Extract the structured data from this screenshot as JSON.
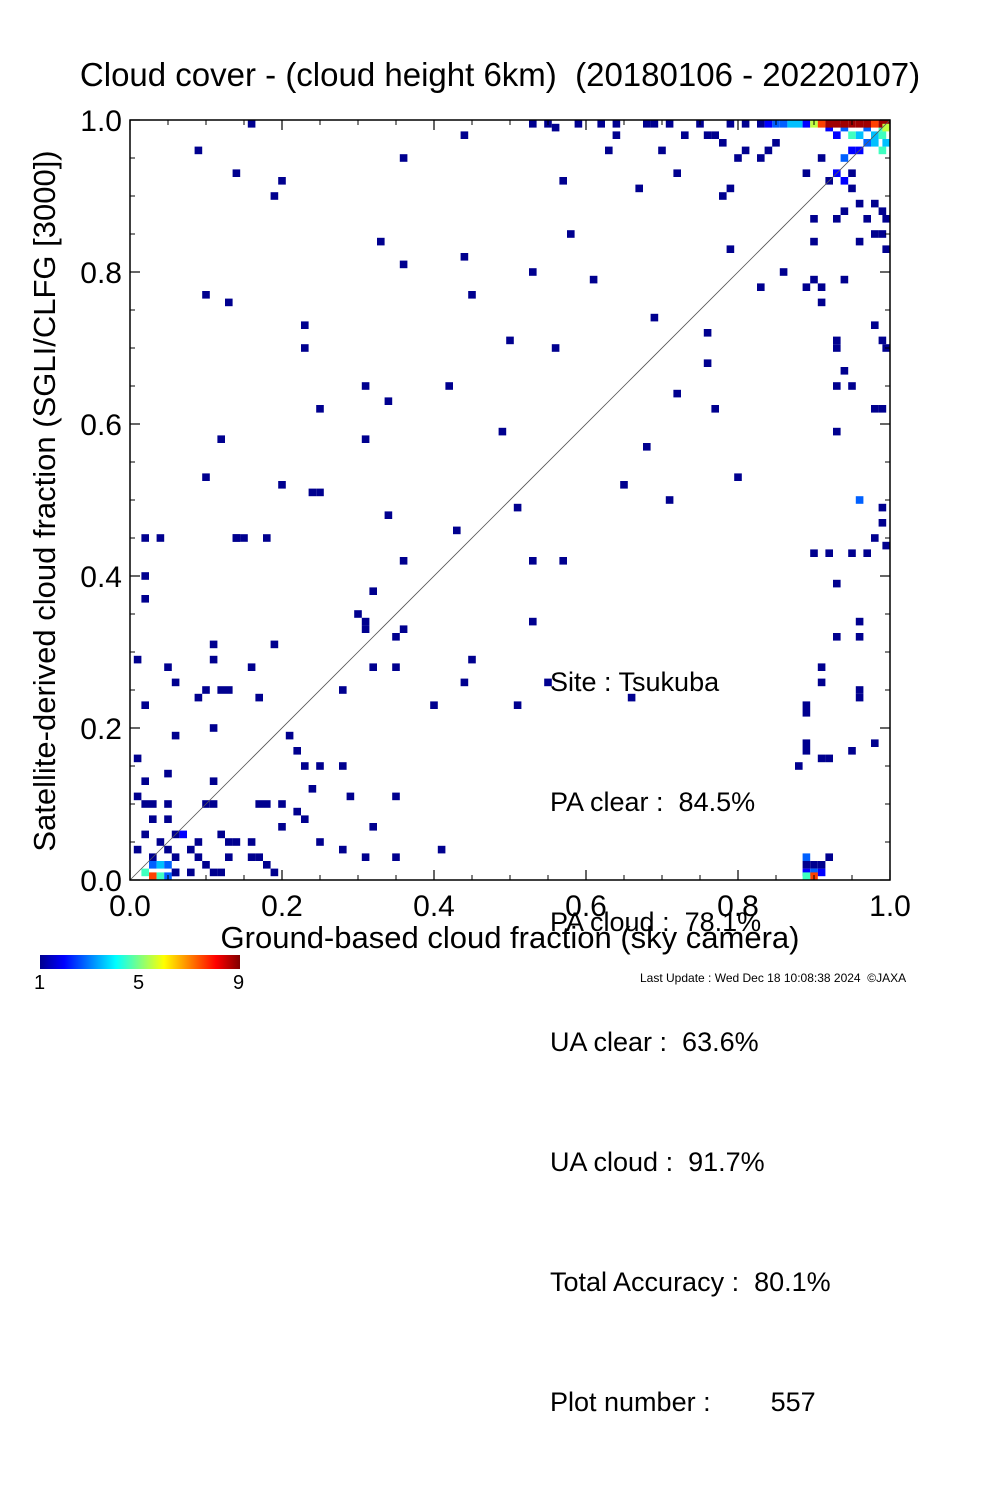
{
  "chart_data": {
    "type": "heatmap",
    "title": "Cloud cover - (cloud height 6km)  (20180106 - 20220107)",
    "xlabel": "Ground-based cloud fraction (sky camera)",
    "ylabel": "Satellite-derived cloud fraction (SGLI/CLFG [3000])",
    "xlim": [
      0.0,
      1.0
    ],
    "ylim": [
      0.0,
      1.0
    ],
    "x_ticks": [
      "0.0",
      "0.2",
      "0.4",
      "0.6",
      "0.8",
      "1.0"
    ],
    "y_ticks": [
      "0.0",
      "0.2",
      "0.4",
      "0.6",
      "0.8",
      "1.0"
    ],
    "grid": false,
    "diagonal_line": true,
    "colorbar": {
      "min": 1,
      "max": 9,
      "tick_labels": [
        "1",
        "5",
        "9"
      ]
    },
    "cells": [
      [
        0.02,
        0.45,
        1
      ],
      [
        0.04,
        0.45,
        1
      ],
      [
        0.02,
        0.4,
        1
      ],
      [
        0.02,
        0.37,
        1
      ],
      [
        0.01,
        0.29,
        1
      ],
      [
        0.05,
        0.28,
        1
      ],
      [
        0.06,
        0.26,
        1
      ],
      [
        0.02,
        0.23,
        1
      ],
      [
        0.06,
        0.19,
        1
      ],
      [
        0.01,
        0.16,
        1
      ],
      [
        0.02,
        0.13,
        1
      ],
      [
        0.05,
        0.14,
        1
      ],
      [
        0.01,
        0.11,
        1
      ],
      [
        0.02,
        0.1,
        1
      ],
      [
        0.03,
        0.1,
        1
      ],
      [
        0.05,
        0.1,
        1
      ],
      [
        0.03,
        0.08,
        1
      ],
      [
        0.05,
        0.08,
        1
      ],
      [
        0.02,
        0.06,
        1
      ],
      [
        0.04,
        0.05,
        1
      ],
      [
        0.06,
        0.06,
        1
      ],
      [
        0.01,
        0.04,
        1
      ],
      [
        0.03,
        0.03,
        1
      ],
      [
        0.05,
        0.04,
        1
      ],
      [
        0.06,
        0.03,
        1
      ],
      [
        0.08,
        0.04,
        1
      ],
      [
        0.03,
        0.02,
        3
      ],
      [
        0.04,
        0.02,
        4
      ],
      [
        0.05,
        0.02,
        3
      ],
      [
        0.06,
        0.01,
        2
      ],
      [
        0.02,
        0.01,
        5
      ],
      [
        0.03,
        0.0,
        8
      ],
      [
        0.04,
        0.0,
        5
      ],
      [
        0.05,
        0.0,
        3
      ],
      [
        0.07,
        0.06,
        2
      ],
      [
        0.09,
        0.03,
        1
      ],
      [
        0.1,
        0.02,
        1
      ],
      [
        0.11,
        0.01,
        1
      ],
      [
        0.12,
        0.01,
        1
      ],
      [
        0.08,
        0.01,
        1
      ],
      [
        0.06,
        0.01,
        1
      ],
      [
        0.09,
        0.05,
        1
      ],
      [
        0.1,
        0.1,
        1
      ],
      [
        0.11,
        0.1,
        1
      ],
      [
        0.09,
        0.24,
        1
      ],
      [
        0.1,
        0.25,
        1
      ],
      [
        0.11,
        0.13,
        1
      ],
      [
        0.11,
        0.2,
        1
      ],
      [
        0.11,
        0.29,
        1
      ],
      [
        0.11,
        0.31,
        1
      ],
      [
        0.12,
        0.25,
        1
      ],
      [
        0.13,
        0.25,
        1
      ],
      [
        0.12,
        0.06,
        1
      ],
      [
        0.13,
        0.05,
        1
      ],
      [
        0.14,
        0.05,
        1
      ],
      [
        0.13,
        0.03,
        1
      ],
      [
        0.16,
        0.05,
        1
      ],
      [
        0.16,
        0.03,
        1
      ],
      [
        0.17,
        0.03,
        1
      ],
      [
        0.18,
        0.02,
        1
      ],
      [
        0.19,
        0.01,
        1
      ],
      [
        0.17,
        0.1,
        1
      ],
      [
        0.18,
        0.1,
        1
      ],
      [
        0.16,
        0.28,
        1
      ],
      [
        0.17,
        0.24,
        1
      ],
      [
        0.15,
        0.45,
        1
      ],
      [
        0.18,
        0.45,
        1
      ],
      [
        0.14,
        0.45,
        1
      ],
      [
        0.19,
        0.31,
        1
      ],
      [
        0.21,
        0.19,
        1
      ],
      [
        0.22,
        0.17,
        1
      ],
      [
        0.23,
        0.15,
        1
      ],
      [
        0.24,
        0.12,
        1
      ],
      [
        0.25,
        0.15,
        1
      ],
      [
        0.2,
        0.1,
        1
      ],
      [
        0.22,
        0.09,
        1
      ],
      [
        0.2,
        0.07,
        1
      ],
      [
        0.23,
        0.08,
        1
      ],
      [
        0.2,
        0.52,
        1
      ],
      [
        0.24,
        0.51,
        1
      ],
      [
        0.25,
        0.51,
        1
      ],
      [
        0.14,
        0.45,
        1
      ],
      [
        0.1,
        0.53,
        1
      ],
      [
        0.12,
        0.58,
        1
      ],
      [
        0.23,
        0.73,
        1
      ],
      [
        0.23,
        0.7,
        1
      ],
      [
        0.25,
        0.62,
        1
      ],
      [
        0.13,
        0.76,
        1
      ],
      [
        0.1,
        0.77,
        1
      ],
      [
        0.19,
        0.9,
        1
      ],
      [
        0.2,
        0.92,
        1
      ],
      [
        0.14,
        0.93,
        1
      ],
      [
        0.09,
        0.96,
        1
      ],
      [
        0.16,
        1.0,
        1
      ],
      [
        0.33,
        0.84,
        1
      ],
      [
        0.36,
        0.81,
        1
      ],
      [
        0.31,
        0.65,
        1
      ],
      [
        0.34,
        0.63,
        1
      ],
      [
        0.31,
        0.58,
        1
      ],
      [
        0.34,
        0.48,
        1
      ],
      [
        0.36,
        0.42,
        1
      ],
      [
        0.32,
        0.38,
        1
      ],
      [
        0.3,
        0.35,
        1
      ],
      [
        0.31,
        0.33,
        1
      ],
      [
        0.31,
        0.34,
        1
      ],
      [
        0.35,
        0.32,
        1
      ],
      [
        0.36,
        0.33,
        1
      ],
      [
        0.32,
        0.28,
        1
      ],
      [
        0.35,
        0.28,
        1
      ],
      [
        0.28,
        0.25,
        1
      ],
      [
        0.28,
        0.15,
        1
      ],
      [
        0.29,
        0.11,
        1
      ],
      [
        0.32,
        0.07,
        1
      ],
      [
        0.35,
        0.11,
        1
      ],
      [
        0.25,
        0.05,
        1
      ],
      [
        0.28,
        0.04,
        1
      ],
      [
        0.31,
        0.03,
        1
      ],
      [
        0.35,
        0.03,
        1
      ],
      [
        0.41,
        0.04,
        1
      ],
      [
        0.4,
        0.23,
        1
      ],
      [
        0.44,
        0.26,
        1
      ],
      [
        0.45,
        0.29,
        1
      ],
      [
        0.43,
        0.46,
        1
      ],
      [
        0.42,
        0.65,
        1
      ],
      [
        0.44,
        0.82,
        1
      ],
      [
        0.45,
        0.77,
        1
      ],
      [
        0.36,
        0.95,
        1
      ],
      [
        0.44,
        0.98,
        1
      ],
      [
        0.49,
        0.59,
        1
      ],
      [
        0.5,
        0.71,
        1
      ],
      [
        0.51,
        0.49,
        1
      ],
      [
        0.53,
        0.8,
        1
      ],
      [
        0.53,
        0.42,
        1
      ],
      [
        0.53,
        0.34,
        1
      ],
      [
        0.51,
        0.23,
        1
      ],
      [
        0.55,
        0.26,
        1
      ],
      [
        0.56,
        0.7,
        1
      ],
      [
        0.57,
        0.42,
        1
      ],
      [
        0.58,
        0.85,
        1
      ],
      [
        0.57,
        0.92,
        1
      ],
      [
        0.61,
        0.79,
        1
      ],
      [
        0.63,
        0.96,
        1
      ],
      [
        0.64,
        0.98,
        1
      ],
      [
        0.67,
        0.91,
        1
      ],
      [
        0.65,
        0.52,
        1
      ],
      [
        0.66,
        0.24,
        1
      ],
      [
        0.68,
        0.57,
        1
      ],
      [
        0.69,
        0.74,
        1
      ],
      [
        0.71,
        0.5,
        1
      ],
      [
        0.72,
        0.64,
        1
      ],
      [
        0.7,
        0.96,
        1
      ],
      [
        0.72,
        0.93,
        1
      ],
      [
        0.73,
        0.98,
        1
      ],
      [
        0.76,
        0.72,
        1
      ],
      [
        0.76,
        0.68,
        1
      ],
      [
        0.77,
        0.62,
        1
      ],
      [
        0.78,
        0.9,
        1
      ],
      [
        0.79,
        0.91,
        1
      ],
      [
        0.79,
        0.83,
        1
      ],
      [
        0.8,
        0.53,
        1
      ],
      [
        0.76,
        0.98,
        1
      ],
      [
        0.77,
        0.98,
        1
      ],
      [
        0.78,
        0.97,
        1
      ],
      [
        0.8,
        0.95,
        1
      ],
      [
        0.81,
        0.96,
        1
      ],
      [
        0.83,
        0.95,
        1
      ],
      [
        0.84,
        0.96,
        1
      ],
      [
        0.85,
        0.97,
        1
      ],
      [
        0.83,
        0.78,
        1
      ],
      [
        0.86,
        0.8,
        1
      ],
      [
        0.89,
        0.78,
        1
      ],
      [
        0.9,
        0.79,
        1
      ],
      [
        0.89,
        0.93,
        1
      ],
      [
        0.9,
        0.84,
        1
      ],
      [
        0.9,
        0.87,
        1
      ],
      [
        0.91,
        0.95,
        1
      ],
      [
        0.92,
        0.92,
        1
      ],
      [
        0.91,
        0.78,
        1
      ],
      [
        0.91,
        0.76,
        1
      ],
      [
        0.93,
        0.7,
        1
      ],
      [
        0.93,
        0.71,
        1
      ],
      [
        0.93,
        0.65,
        1
      ],
      [
        0.94,
        0.67,
        1
      ],
      [
        0.95,
        0.65,
        1
      ],
      [
        0.94,
        0.79,
        1
      ],
      [
        0.93,
        0.59,
        1
      ],
      [
        0.9,
        0.43,
        1
      ],
      [
        0.92,
        0.43,
        1
      ],
      [
        0.93,
        0.39,
        1
      ],
      [
        0.95,
        0.43,
        1
      ],
      [
        0.97,
        0.43,
        1
      ],
      [
        0.96,
        0.34,
        1
      ],
      [
        0.96,
        0.32,
        1
      ],
      [
        0.93,
        0.32,
        1
      ],
      [
        0.96,
        0.25,
        1
      ],
      [
        0.96,
        0.24,
        1
      ],
      [
        0.98,
        0.18,
        1
      ],
      [
        0.95,
        0.17,
        1
      ],
      [
        0.92,
        0.16,
        1
      ],
      [
        0.91,
        0.16,
        1
      ],
      [
        0.91,
        0.28,
        1
      ],
      [
        0.91,
        0.26,
        1
      ],
      [
        0.89,
        0.23,
        1
      ],
      [
        0.89,
        0.22,
        1
      ],
      [
        0.89,
        0.18,
        1
      ],
      [
        0.89,
        0.17,
        1
      ],
      [
        0.88,
        0.15,
        1
      ],
      [
        0.96,
        0.5,
        3
      ],
      [
        0.99,
        0.49,
        1
      ],
      [
        0.99,
        0.47,
        1
      ],
      [
        0.98,
        0.45,
        1
      ],
      [
        1.0,
        0.44,
        1
      ],
      [
        0.98,
        0.62,
        1
      ],
      [
        0.99,
        0.62,
        1
      ],
      [
        0.98,
        0.73,
        1
      ],
      [
        0.99,
        0.71,
        1
      ],
      [
        1.0,
        0.7,
        1
      ],
      [
        0.96,
        0.84,
        1
      ],
      [
        0.98,
        0.85,
        1
      ],
      [
        0.99,
        0.85,
        1
      ],
      [
        1.0,
        0.83,
        1
      ],
      [
        0.97,
        0.87,
        1
      ],
      [
        0.99,
        0.88,
        1
      ],
      [
        1.0,
        0.87,
        1
      ],
      [
        0.96,
        0.89,
        1
      ],
      [
        0.98,
        0.89,
        1
      ],
      [
        0.93,
        0.87,
        1
      ],
      [
        0.94,
        0.88,
        1
      ],
      [
        0.95,
        0.91,
        1
      ],
      [
        0.93,
        0.93,
        2
      ],
      [
        0.94,
        0.92,
        2
      ],
      [
        0.95,
        0.93,
        1
      ],
      [
        0.94,
        0.95,
        3
      ],
      [
        0.95,
        0.96,
        2
      ],
      [
        0.96,
        0.96,
        2
      ],
      [
        0.97,
        0.97,
        3
      ],
      [
        0.98,
        0.97,
        4
      ],
      [
        0.99,
        0.96,
        5
      ],
      [
        0.93,
        0.98,
        2
      ],
      [
        0.95,
        0.98,
        5
      ],
      [
        0.96,
        0.98,
        4
      ],
      [
        0.97,
        0.99,
        3
      ],
      [
        0.98,
        0.98,
        4
      ],
      [
        0.99,
        0.99,
        5
      ],
      [
        1.0,
        0.97,
        4
      ],
      [
        0.92,
        0.99,
        2
      ],
      [
        0.94,
        0.99,
        3
      ],
      [
        0.85,
        1.0,
        3
      ],
      [
        0.86,
        1.0,
        3
      ],
      [
        0.87,
        1.0,
        4
      ],
      [
        0.88,
        1.0,
        4
      ],
      [
        0.89,
        1.0,
        2
      ],
      [
        0.9,
        1.0,
        6
      ],
      [
        0.91,
        1.0,
        8
      ],
      [
        0.92,
        1.0,
        9
      ],
      [
        0.93,
        1.0,
        9
      ],
      [
        0.94,
        1.0,
        9
      ],
      [
        0.95,
        1.0,
        9
      ],
      [
        0.96,
        1.0,
        9
      ],
      [
        0.97,
        1.0,
        9
      ],
      [
        0.98,
        1.0,
        8
      ],
      [
        0.99,
        1.0,
        9
      ],
      [
        1.0,
        1.0,
        9
      ],
      [
        0.99,
        0.98,
        5
      ],
      [
        1.0,
        0.99,
        6
      ],
      [
        0.68,
        1.0,
        1
      ],
      [
        0.69,
        1.0,
        1
      ],
      [
        0.71,
        1.0,
        1
      ],
      [
        0.62,
        1.0,
        1
      ],
      [
        0.64,
        1.0,
        1
      ],
      [
        0.59,
        1.0,
        1
      ],
      [
        0.53,
        1.0,
        1
      ],
      [
        0.56,
        0.99,
        1
      ],
      [
        0.55,
        1.0,
        1
      ],
      [
        0.75,
        1.0,
        1
      ],
      [
        0.79,
        1.0,
        1
      ],
      [
        0.81,
        1.0,
        1
      ],
      [
        0.83,
        1.0,
        1
      ],
      [
        0.84,
        1.0,
        2
      ],
      [
        0.89,
        0.03,
        3
      ],
      [
        0.89,
        0.02,
        1
      ],
      [
        0.9,
        0.02,
        1
      ],
      [
        0.89,
        0.01,
        2
      ],
      [
        0.9,
        0.01,
        3
      ],
      [
        0.91,
        0.01,
        2
      ],
      [
        0.9,
        0.0,
        8
      ],
      [
        0.89,
        0.0,
        5
      ],
      [
        0.91,
        0.02,
        1
      ],
      [
        0.92,
        0.03,
        1
      ]
    ],
    "annotations": {
      "site": "Site : Tsukuba",
      "pa_clear": "PA clear :  84.5%",
      "pa_cloud": "PA cloud :  78.1%",
      "ua_clear": "UA clear :  63.6%",
      "ua_cloud": "UA cloud :  91.7%",
      "total_accuracy": "Total Accuracy :  80.1%",
      "plot_number": "Plot number :        557"
    }
  },
  "colors": {
    "scale": [
      "#00008f",
      "#0000ff",
      "#0060ff",
      "#00c0ff",
      "#40ffc0",
      "#c0ff40",
      "#ffc000",
      "#ff4000",
      "#a00000"
    ]
  },
  "footer": "Last Update : Wed Dec 18 10:08:38 2024  ©JAXA"
}
